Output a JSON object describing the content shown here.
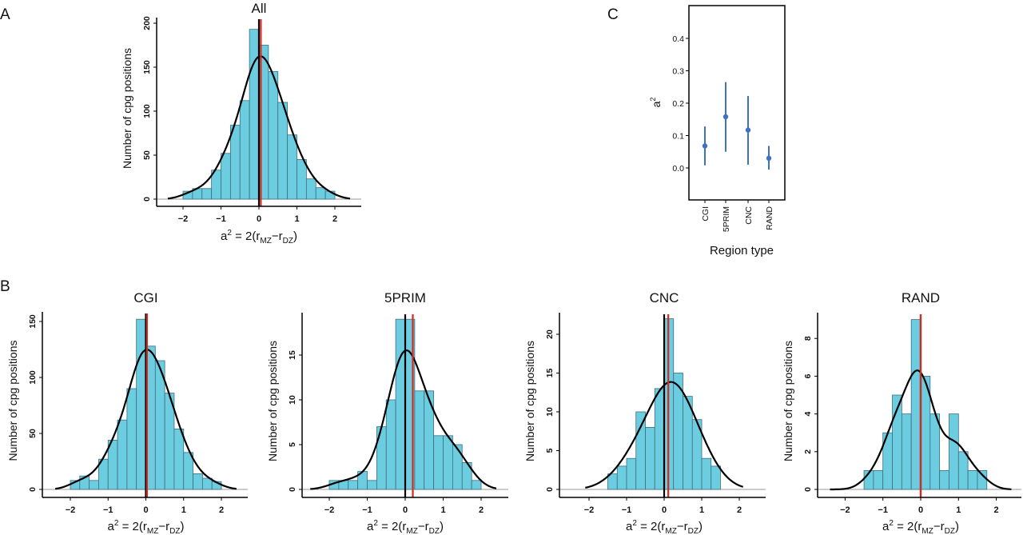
{
  "panel_letters": {
    "a": "A",
    "b": "B",
    "c": "C"
  },
  "colors": {
    "bar_fill": "#6dcde0",
    "bar_stroke": "#3b6e7e",
    "mean_line": "#d9281e",
    "zero_line": "#000000",
    "point": "#3d72c4"
  },
  "chart_data": [
    {
      "id": "all",
      "type": "bar",
      "title": "All",
      "ylabel": "Number of cpg positions",
      "xlabel_parts": [
        "a",
        "2",
        " = 2(r",
        "MZ",
        "−r",
        "DZ",
        ")"
      ],
      "x_ticks": [
        "-2",
        "-1",
        "0",
        "1",
        "2"
      ],
      "x_tick_values": [
        -2,
        -1,
        0,
        1,
        2
      ],
      "y_ticks": [
        "0",
        "50",
        "100",
        "150",
        "200"
      ],
      "y_tick_values": [
        0,
        50,
        100,
        150,
        200
      ],
      "bin_width": 0.25,
      "bin_start": -2,
      "values": [
        9,
        12,
        12,
        33,
        52,
        84,
        112,
        193,
        175,
        145,
        110,
        73,
        45,
        23,
        13,
        9
      ],
      "mean_line": 0.05,
      "zero_line": 0,
      "density_bandwidth": 0.28,
      "density_range": [
        -2.4,
        2.4
      ]
    },
    {
      "id": "cgi",
      "type": "bar",
      "title": "CGI",
      "ylabel": "Number of cpg positions",
      "xlabel_parts": [
        "a",
        "2",
        " = 2(r",
        "MZ",
        "−r",
        "DZ",
        ")"
      ],
      "x_ticks": [
        "-2",
        "-1",
        "0",
        "1",
        "2"
      ],
      "x_tick_values": [
        -2,
        -1,
        0,
        1,
        2
      ],
      "y_ticks": [
        "0",
        "50",
        "100",
        "150"
      ],
      "y_tick_values": [
        0,
        50,
        100,
        150
      ],
      "bin_width": 0.25,
      "bin_start": -2,
      "values": [
        8,
        12,
        8,
        27,
        44,
        62,
        90,
        152,
        128,
        115,
        86,
        54,
        33,
        14,
        10,
        7
      ],
      "mean_line": 0.03,
      "zero_line": 0,
      "density_bandwidth": 0.28,
      "density_range": [
        -2.4,
        2.4
      ]
    },
    {
      "id": "5prim",
      "type": "bar",
      "title": "5PRIM",
      "ylabel": "Number of cpg positions",
      "xlabel_parts": [
        "a",
        "2",
        " = 2(r",
        "MZ",
        "−r",
        "DZ",
        ")"
      ],
      "x_ticks": [
        "-2",
        "-1",
        "0",
        "1",
        "2"
      ],
      "x_tick_values": [
        -2,
        -1,
        0,
        1,
        2
      ],
      "y_ticks": [
        "0",
        "5",
        "10",
        "15"
      ],
      "y_tick_values": [
        0,
        5,
        10,
        15
      ],
      "bin_width": 0.25,
      "bin_start": -2,
      "values": [
        1,
        1,
        1,
        2,
        1,
        7,
        10,
        19,
        19,
        11,
        11,
        6,
        6,
        5,
        3,
        1
      ],
      "mean_line": 0.2,
      "zero_line": 0,
      "density_bandwidth": 0.3,
      "density_range": [
        -2.5,
        2.4
      ]
    },
    {
      "id": "cnc",
      "type": "bar",
      "title": "CNC",
      "ylabel": "Number of cpg positions",
      "xlabel_parts": [
        "a",
        "2",
        " = 2(r",
        "MZ",
        "−r",
        "DZ",
        ")"
      ],
      "x_ticks": [
        "-2",
        "-1",
        "0",
        "1",
        "2"
      ],
      "x_tick_values": [
        -2,
        -1,
        0,
        1,
        2
      ],
      "y_ticks": [
        "0",
        "5",
        "10",
        "15",
        "20"
      ],
      "y_tick_values": [
        0,
        5,
        10,
        15,
        20
      ],
      "bin_width": 0.25,
      "bin_start": -1.5,
      "values": [
        2,
        3,
        4,
        10,
        8,
        13,
        22,
        15,
        12,
        9,
        4,
        3
      ],
      "mean_line": 0.11,
      "zero_line": 0,
      "density_bandwidth": 0.45,
      "density_range": [
        -2.1,
        2.1
      ]
    },
    {
      "id": "rand",
      "type": "bar",
      "title": "RAND",
      "ylabel": "Number of cpg positions",
      "xlabel_parts": [
        "a",
        "2",
        " = 2(r",
        "MZ",
        "−r",
        "DZ",
        ")"
      ],
      "x_ticks": [
        "-2",
        "-1",
        "0",
        "1",
        "2"
      ],
      "x_tick_values": [
        -2,
        -1,
        0,
        1,
        2
      ],
      "y_ticks": [
        "0",
        "2",
        "4",
        "6",
        "8"
      ],
      "y_tick_values": [
        0,
        2,
        4,
        6,
        8
      ],
      "bin_width": 0.25,
      "bin_start": -1.5,
      "values": [
        1,
        1,
        3,
        5,
        4,
        9,
        6,
        4,
        1,
        4,
        2,
        1,
        1
      ],
      "mean_line": 0.0,
      "zero_line": 0,
      "density_bandwidth": 0.28,
      "density_range": [
        -2.4,
        2.4
      ]
    },
    {
      "id": "region",
      "type": "scatter",
      "xlabel": "Region type",
      "ylabel_parts": [
        "a",
        "2"
      ],
      "categories": [
        "CGI",
        "5PRIM",
        "CNC",
        "RAND"
      ],
      "values": [
        0.068,
        0.158,
        0.117,
        0.03
      ],
      "ci_low": [
        0.008,
        0.05,
        0.01,
        -0.005
      ],
      "ci_high": [
        0.128,
        0.265,
        0.222,
        0.068
      ],
      "y_ticks": [
        "0.0",
        "0.1",
        "0.2",
        "0.3",
        "0.4"
      ],
      "y_tick_values": [
        0,
        0.1,
        0.2,
        0.3,
        0.4
      ],
      "ylim": [
        -0.1,
        0.5
      ]
    }
  ]
}
